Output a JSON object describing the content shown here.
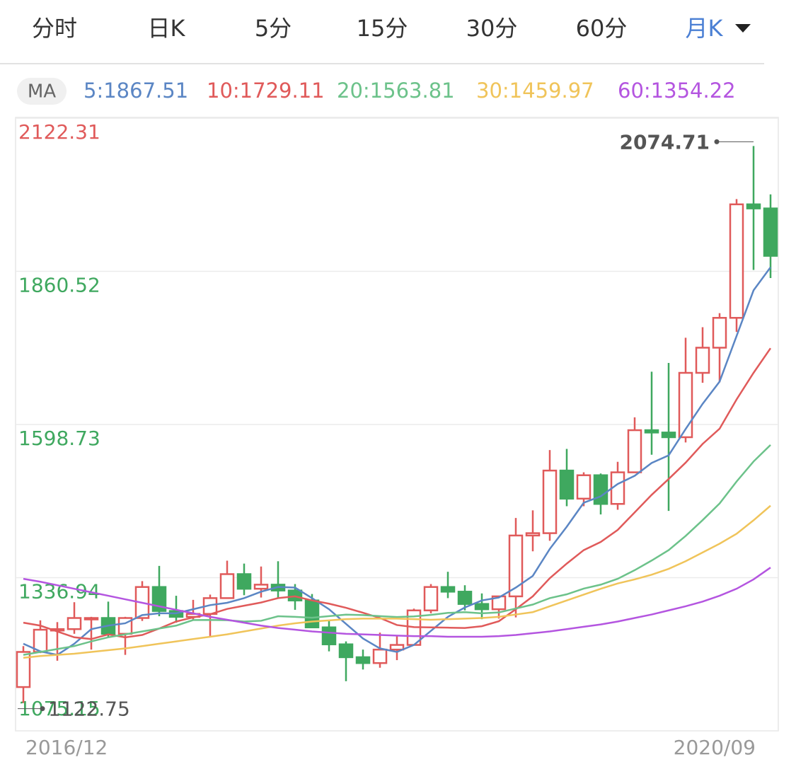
{
  "tabs": [
    "分时",
    "日K",
    "5分",
    "15分",
    "30分",
    "60分",
    "月K"
  ],
  "active_tab": 6,
  "ma_label": "MA",
  "chart_data": {
    "type": "candlestick",
    "x_labels": [
      "2016/12",
      "2020/09"
    ],
    "ylim": [
      1075.15,
      2122.31
    ],
    "yticks": [
      1075.15,
      1336.94,
      1598.73,
      1860.52,
      2122.31
    ],
    "ytick_colors": [
      "#3fa85f",
      "#3fa85f",
      "#3fa85f",
      "#3fa85f",
      "#e05a5a"
    ],
    "grid": true,
    "up_color": "#e05a5a",
    "down_color": "#3fa85f",
    "open": [
      1150,
      1210,
      1248,
      1249,
      1268,
      1268,
      1241,
      1268,
      1321,
      1280,
      1270,
      1275,
      1302,
      1343,
      1318,
      1325,
      1315,
      1298,
      1252,
      1223,
      1201,
      1191,
      1214,
      1222,
      1281,
      1321,
      1313,
      1292,
      1283,
      1305,
      1409,
      1413,
      1520,
      1472,
      1512,
      1463,
      1517,
      1589,
      1585,
      1577,
      1687,
      1730,
      1781,
      1975,
      1968
    ],
    "high": [
      1220,
      1264,
      1261,
      1295,
      1270,
      1296,
      1270,
      1331,
      1357,
      1306,
      1299,
      1308,
      1366,
      1361,
      1356,
      1365,
      1326,
      1309,
      1265,
      1228,
      1214,
      1243,
      1237,
      1284,
      1326,
      1347,
      1324,
      1310,
      1306,
      1439,
      1452,
      1555,
      1557,
      1517,
      1515,
      1535,
      1611,
      1689,
      1704,
      1747,
      1765,
      1789,
      1984,
      2074.71,
      1992
    ],
    "low": [
      1122.75,
      1208,
      1195,
      1241,
      1214,
      1236,
      1205,
      1263,
      1271,
      1260,
      1264,
      1236,
      1302,
      1307,
      1303,
      1302,
      1282,
      1251,
      1211,
      1160,
      1180,
      1183,
      1196,
      1221,
      1276,
      1302,
      1281,
      1266,
      1267,
      1269,
      1382,
      1400,
      1459,
      1459,
      1445,
      1453,
      1517,
      1547,
      1451,
      1568,
      1670,
      1671,
      1757,
      1863,
      1849
    ],
    "close": [
      1210,
      1248,
      1249,
      1268,
      1268,
      1241,
      1268,
      1321,
      1280,
      1270,
      1275,
      1302,
      1343,
      1318,
      1325,
      1315,
      1298,
      1252,
      1223,
      1201,
      1191,
      1214,
      1222,
      1281,
      1321,
      1313,
      1292,
      1283,
      1305,
      1409,
      1413,
      1520,
      1472,
      1512,
      1463,
      1517,
      1589,
      1585,
      1577,
      1687,
      1730,
      1781,
      1975,
      1968,
      1887
    ],
    "series": [
      {
        "name": "5:1867.51",
        "color": "#5b86c4",
        "values": [
          1224,
          1211,
          1205,
          1224,
          1249,
          1255,
          1259,
          1273,
          1276,
          1276,
          1283,
          1290,
          1294,
          1302,
          1313,
          1321,
          1320,
          1302,
          1283,
          1258,
          1233,
          1216,
          1210,
          1222,
          1246,
          1270,
          1286,
          1298,
          1303,
          1320,
          1340,
          1386,
          1424,
          1465,
          1476,
          1497,
          1511,
          1533,
          1546,
          1591,
          1634,
          1672,
          1750,
          1828,
          1867.51
        ]
      },
      {
        "name": "10:1729.11",
        "color": "#e05a5a",
        "values": [
          1260,
          1255,
          1245,
          1235,
          1232,
          1240,
          1235,
          1239,
          1250,
          1262,
          1269,
          1274.5,
          1283.5,
          1289,
          1294.5,
          1302,
          1305,
          1298,
          1292.5,
          1285.5,
          1277,
          1268,
          1256,
          1252.5,
          1252,
          1251.5,
          1251,
          1254,
          1262.5,
          1283,
          1305,
          1336,
          1361,
          1384,
          1398,
          1418.5,
          1448.5,
          1478.5,
          1505.5,
          1533.5,
          1565.5,
          1591.5,
          1641.5,
          1687,
          1729.11
        ]
      },
      {
        "name": "20:1563.81",
        "color": "#6cc28a",
        "values": [
          1205,
          1210,
          1215,
          1220,
          1228,
          1235,
          1240,
          1245,
          1250,
          1255,
          1264.5,
          1264.75,
          1264.25,
          1262,
          1263.25,
          1271,
          1270,
          1268.5,
          1271.25,
          1273.75,
          1273,
          1271.25,
          1269.75,
          1270.75,
          1273.25,
          1276.75,
          1278,
          1276,
          1277.5,
          1284.25,
          1291,
          1302,
          1308.5,
          1318.25,
          1325,
          1335,
          1349.75,
          1366.25,
          1384,
          1408.25,
          1435.25,
          1463.75,
          1501.25,
          1535.5,
          1563.81
        ]
      },
      {
        "name": "30:1459.97",
        "color": "#f0c45a",
        "values": [
          1200,
          1203,
          1205,
          1207,
          1210,
          1213,
          1216,
          1220,
          1224,
          1228,
          1232,
          1236,
          1240,
          1245,
          1250,
          1255,
          1259,
          1262,
          1264,
          1266,
          1267,
          1267,
          1267,
          1266,
          1265,
          1266,
          1267,
          1268,
          1270,
          1274,
          1278,
          1288,
          1298,
          1308,
          1318,
          1327,
          1334,
          1342,
          1352,
          1365,
          1380,
          1395,
          1412,
          1435,
          1459.97
        ]
      },
      {
        "name": "60:1354.22",
        "color": "#b455e0",
        "values": [
          1335,
          1330,
          1324,
          1318,
          1312,
          1306,
          1300,
          1294,
          1288,
          1282,
          1276,
          1270,
          1265,
          1260,
          1255,
          1251,
          1248,
          1245,
          1243,
          1241,
          1240,
          1239,
          1238,
          1237,
          1237,
          1236,
          1236,
          1236,
          1237,
          1239,
          1242,
          1245,
          1249,
          1253,
          1257,
          1262,
          1268,
          1274,
          1281,
          1288,
          1296,
          1306,
          1318,
          1334,
          1354.22
        ]
      }
    ]
  }
}
